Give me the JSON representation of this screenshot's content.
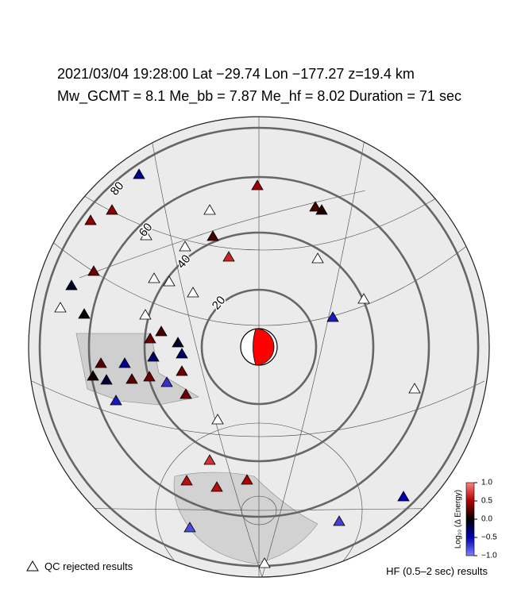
{
  "header": {
    "line1": "2021/03/04  19:28:00   Lat −29.74   Lon −177.27   z=19.4 km",
    "line2": "Mw_GCMT = 8.1   Me_bb = 7.87   Me_hf = 8.02   Duration = 71 sec"
  },
  "ring_labels": [
    20,
    40,
    60,
    80
  ],
  "stations": {
    "values": [
      -0.4,
      0.4,
      0.4,
      0.3,
      -0.1,
      0,
      0.45,
      0.2,
      0.1,
      0.2,
      0.65,
      -0.6,
      0.2,
      0.3,
      -0.1,
      -0.3,
      0.25,
      -0.4,
      -0.3,
      0.3,
      0.05,
      -0.15,
      0.25,
      0.3,
      -0.7,
      0.3,
      -0.6,
      0.7,
      0.55,
      0.5,
      0.55,
      -0.5,
      -0.8,
      -0.75
    ]
  },
  "colorbar": {
    "label": "Log₁₀ (Δ Energy)",
    "lim": [
      -1,
      1
    ],
    "ticks": [
      {
        "value": 1,
        "label": "1.0"
      },
      {
        "value": 0.5,
        "label": "0.5"
      },
      {
        "value": 0,
        "label": "0.0"
      },
      {
        "value": -0.5,
        "label": "−0.5"
      },
      {
        "value": -1,
        "label": "−1.0"
      }
    ]
  },
  "legend": {
    "rejected": "QC rejected results",
    "hf": "HF (0.5–2 sec) results"
  }
}
